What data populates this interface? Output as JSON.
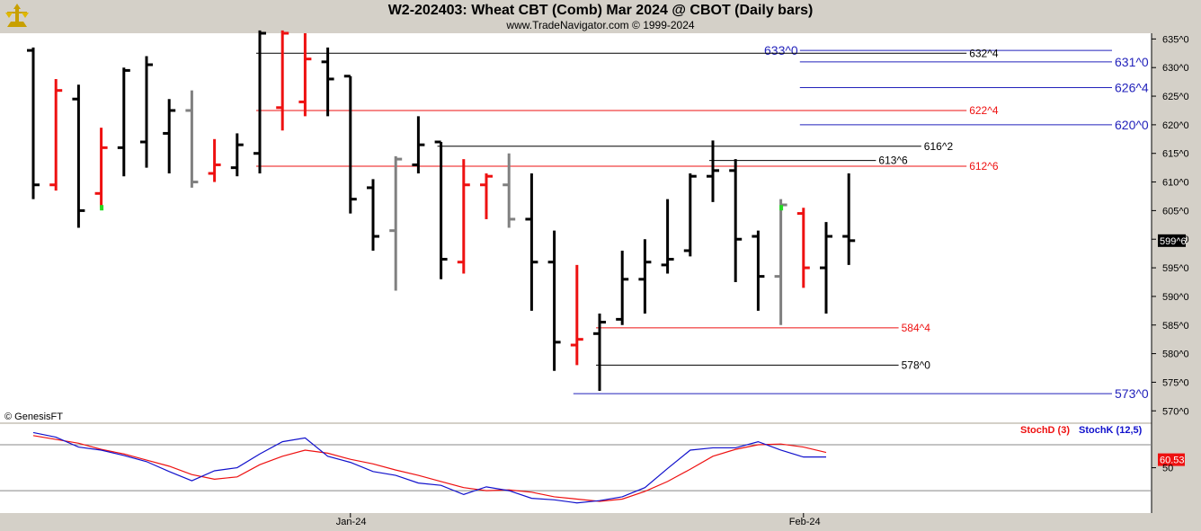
{
  "header": {
    "title": "W2-202403:  Wheat CBT (Comb) Mar 2024 @ CBOT  (Daily bars)",
    "subtitle": "www.TradeNavigator.com © 1999-2024"
  },
  "watermark": "© GenesisFT",
  "colors": {
    "up": "#ee1111",
    "down": "#000000",
    "neutral": "#808080",
    "stoch_d": "#ee1111",
    "stoch_k": "#1111cc",
    "blue_level": "#2222bb",
    "background": "#ffffff",
    "frame": "#d4d0c8"
  },
  "chart_data": {
    "type": "ohlc",
    "price_axis": {
      "ylim": [
        568,
        636
      ],
      "ticks": [
        570,
        575,
        580,
        585,
        590,
        595,
        600,
        605,
        610,
        615,
        620,
        625,
        630,
        635
      ],
      "tick_labels": [
        "570^0",
        "575^0",
        "580^0",
        "585^0",
        "590^0",
        "595^0",
        "600^0",
        "605^0",
        "610^0",
        "615^0",
        "620^0",
        "625^0",
        "630^0",
        "635^0"
      ],
      "last_price_label": "599^6",
      "last_price": 599.75
    },
    "date_axis": {
      "labels": [
        {
          "text": "Jan-24",
          "bar": 14
        },
        {
          "text": "Feb-24",
          "bar": 34
        }
      ]
    },
    "bars": [
      {
        "o": 633,
        "h": 633.5,
        "l": 607,
        "c": 609.5,
        "color": "black"
      },
      {
        "o": 609.5,
        "h": 628,
        "l": 608.5,
        "c": 626,
        "color": "red"
      },
      {
        "o": 624.5,
        "h": 627,
        "l": 602,
        "c": 605,
        "color": "black"
      },
      {
        "o": 608,
        "h": 619.5,
        "l": 605.5,
        "c": 616,
        "color": "red"
      },
      {
        "o": 616,
        "h": 630,
        "l": 611,
        "c": 629.5,
        "color": "black"
      },
      {
        "o": 617,
        "h": 632,
        "l": 612.5,
        "c": 630.5,
        "color": "black"
      },
      {
        "o": 618.5,
        "h": 624.5,
        "l": 611.5,
        "c": 622.5,
        "color": "black"
      },
      {
        "o": 622.5,
        "h": 626,
        "l": 609,
        "c": 610,
        "color": "neutral"
      },
      {
        "o": 611.5,
        "h": 617.5,
        "l": 610,
        "c": 613,
        "color": "red"
      },
      {
        "o": 612.5,
        "h": 618.5,
        "l": 611,
        "c": 616.5,
        "color": "black"
      },
      {
        "o": 615,
        "h": 636.5,
        "l": 611.5,
        "c": 636,
        "color": "black"
      },
      {
        "o": 623,
        "h": 636.5,
        "l": 619,
        "c": 636,
        "color": "red"
      },
      {
        "o": 624,
        "h": 636,
        "l": 621.5,
        "c": 631.5,
        "color": "red"
      },
      {
        "o": 631,
        "h": 633.5,
        "l": 621.5,
        "c": 628,
        "color": "black"
      },
      {
        "o": 628.5,
        "h": 628.5,
        "l": 604.5,
        "c": 607,
        "color": "black"
      },
      {
        "o": 609,
        "h": 610.5,
        "l": 598,
        "c": 600.5,
        "color": "black"
      },
      {
        "o": 601.5,
        "h": 614.5,
        "l": 591,
        "c": 614,
        "color": "neutral"
      },
      {
        "o": 613,
        "h": 621.5,
        "l": 611.5,
        "c": 616.5,
        "color": "black"
      },
      {
        "o": 617,
        "h": 617,
        "l": 593,
        "c": 596.5,
        "color": "black"
      },
      {
        "o": 596,
        "h": 614,
        "l": 594,
        "c": 609.5,
        "color": "red"
      },
      {
        "o": 609.5,
        "h": 611.5,
        "l": 603.5,
        "c": 611,
        "color": "red"
      },
      {
        "o": 609.5,
        "h": 615,
        "l": 602,
        "c": 603.5,
        "color": "neutral"
      },
      {
        "o": 603.5,
        "h": 611.5,
        "l": 587.5,
        "c": 596,
        "color": "black"
      },
      {
        "o": 596,
        "h": 601.5,
        "l": 577,
        "c": 582,
        "color": "black"
      },
      {
        "o": 581.5,
        "h": 595.5,
        "l": 578,
        "c": 582.5,
        "color": "red"
      },
      {
        "o": 583.5,
        "h": 587,
        "l": 573.5,
        "c": 585.5,
        "color": "black"
      },
      {
        "o": 586,
        "h": 598,
        "l": 585,
        "c": 593,
        "color": "black"
      },
      {
        "o": 593,
        "h": 600,
        "l": 587,
        "c": 596,
        "color": "black"
      },
      {
        "o": 595.5,
        "h": 607,
        "l": 594,
        "c": 596.5,
        "color": "black"
      },
      {
        "o": 598,
        "h": 611.5,
        "l": 597,
        "c": 611,
        "color": "black"
      },
      {
        "o": 611,
        "h": 617.25,
        "l": 606.5,
        "c": 612,
        "color": "black"
      },
      {
        "o": 612,
        "h": 614,
        "l": 592.5,
        "c": 600,
        "color": "black"
      },
      {
        "o": 600.5,
        "h": 601.5,
        "l": 587.5,
        "c": 593.5,
        "color": "black"
      },
      {
        "o": 593.5,
        "h": 607,
        "l": 585,
        "c": 606,
        "color": "neutral"
      },
      {
        "o": 604.5,
        "h": 605.5,
        "l": 591.5,
        "c": 595,
        "color": "red"
      },
      {
        "o": 595,
        "h": 603,
        "l": 587,
        "c": 600.5,
        "color": "black"
      },
      {
        "o": 600.5,
        "h": 611.5,
        "l": 595.5,
        "c": 599.75,
        "color": "black"
      }
    ],
    "levels": [
      {
        "label": "633^0",
        "value": 633,
        "color": "blue",
        "from_bar": 34,
        "label_bar": 33
      },
      {
        "label": "632^4",
        "value": 632.5,
        "color": "black",
        "from_bar": 10,
        "label_bar": 41
      },
      {
        "label": "631^0",
        "value": 631,
        "color": "blue",
        "from_bar": 34,
        "label_bar": 48
      },
      {
        "label": "626^4",
        "value": 626.5,
        "color": "blue",
        "from_bar": 34,
        "label_bar": 48
      },
      {
        "label": "622^4",
        "value": 622.5,
        "color": "red",
        "from_bar": 10,
        "label_bar": 41
      },
      {
        "label": "620^0",
        "value": 620,
        "color": "blue",
        "from_bar": 34,
        "label_bar": 48
      },
      {
        "label": "616^2",
        "value": 616.25,
        "color": "black",
        "from_bar": 18,
        "label_bar": 39
      },
      {
        "label": "613^6",
        "value": 613.75,
        "color": "black",
        "from_bar": 30,
        "label_bar": 37
      },
      {
        "label": "612^6",
        "value": 612.75,
        "color": "red",
        "from_bar": 10,
        "label_bar": 41
      },
      {
        "label": "584^4",
        "value": 584.5,
        "color": "red",
        "from_bar": 25,
        "label_bar": 38
      },
      {
        "label": "578^0",
        "value": 578,
        "color": "black",
        "from_bar": 25,
        "label_bar": 38
      },
      {
        "label": "573^0",
        "value": 573,
        "color": "blue",
        "from_bar": 24,
        "label_bar": 48
      }
    ],
    "markers": [
      {
        "bar": 3,
        "value": 605.5,
        "color": "#22dd22"
      },
      {
        "bar": 33,
        "value": 605.5,
        "color": "#22dd22"
      }
    ],
    "stochastic": {
      "legend_d": "StochD (3)",
      "legend_k": "StochK (12,5)",
      "current_label": "60.53",
      "current_value": 60.53,
      "ylim": [
        0,
        100
      ],
      "tick_label": "50",
      "tick_value": 50,
      "ref_lines": [
        80,
        20
      ],
      "stoch_k": [
        96,
        90,
        77,
        73,
        66,
        58,
        45,
        33,
        46,
        50,
        68,
        84,
        89,
        65,
        57,
        45,
        40,
        30,
        27,
        15,
        25,
        20,
        10,
        8,
        4,
        7,
        12,
        24,
        49,
        73,
        76,
        76,
        84,
        73,
        64,
        64
      ],
      "stoch_d": [
        92,
        87,
        82,
        74,
        68,
        60,
        52,
        41,
        35,
        38,
        54,
        65,
        73,
        69,
        61,
        55,
        47,
        40,
        32,
        24,
        20,
        21,
        18,
        12,
        9,
        6,
        9,
        19,
        32,
        48,
        65,
        74,
        80,
        81,
        77,
        70
      ]
    }
  }
}
